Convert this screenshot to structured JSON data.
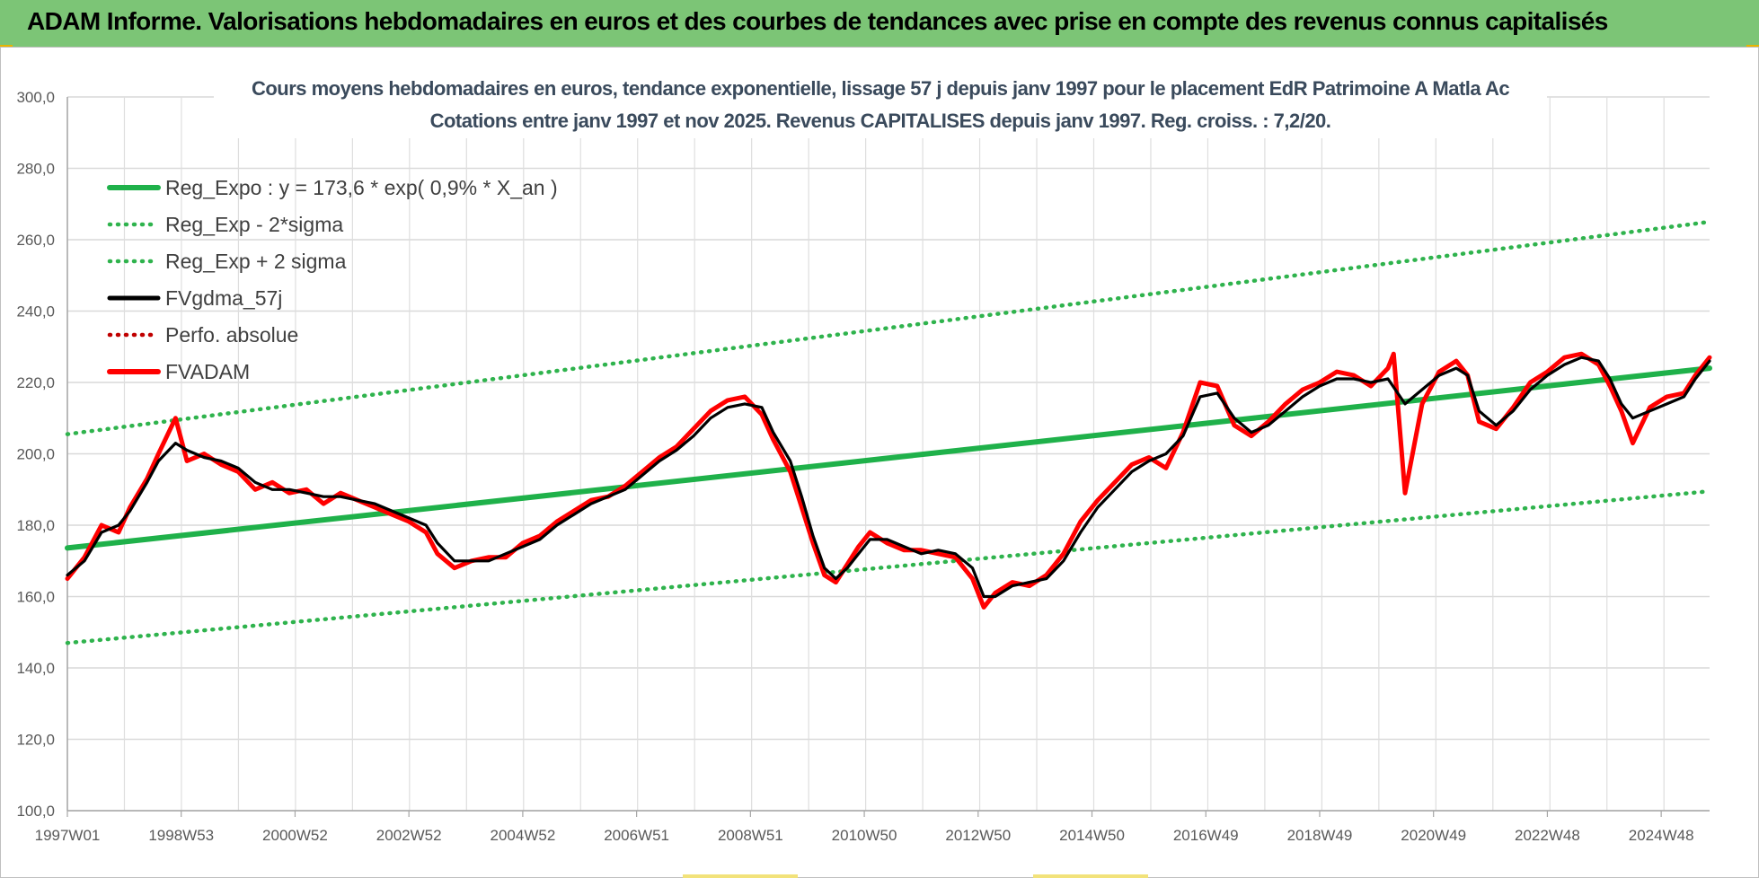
{
  "banner": {
    "title": "ADAM Informe. Valorisations hebdomadaires en euros et des courbes de tendances avec prise en compte des revenus connus capitalisés"
  },
  "colors": {
    "banner_bg": "#7cc576",
    "reg_green": "#1fb14a",
    "sigma_green": "#2fb34d",
    "fvgdma_black": "#000000",
    "perfo_red": "#c00000",
    "fvadam_red": "#ff0000",
    "grid": "#d9d9d9",
    "axis_text": "#595959",
    "title_text": "#3a4a5c"
  },
  "chart_data": {
    "type": "line",
    "title": "Cours moyens hebdomadaires en euros, tendance exponentielle, lissage 57 j depuis janv 1997 pour le placement EdR Patrimoine A Matla Ac",
    "subtitle": "Cotations entre janv 1997 et nov 2025. Revenus CAPITALISES depuis janv 1997. Reg. croiss. : 7,2/20.",
    "xlabel": "",
    "ylabel": "",
    "x_range": [
      1997.0,
      2025.85
    ],
    "ylim": [
      100,
      300
    ],
    "y_ticks": [
      "100,0",
      "120,0",
      "140,0",
      "160,0",
      "180,0",
      "200,0",
      "220,0",
      "240,0",
      "260,0",
      "280,0",
      "300,0"
    ],
    "x_ticks": [
      {
        "label": "1997W01",
        "x": 1997.0
      },
      {
        "label": "1998W53",
        "x": 1999.0
      },
      {
        "label": "2000W52",
        "x": 2001.0
      },
      {
        "label": "2002W52",
        "x": 2003.0
      },
      {
        "label": "2004W52",
        "x": 2005.0
      },
      {
        "label": "2006W51",
        "x": 2007.0
      },
      {
        "label": "2008W51",
        "x": 2009.0
      },
      {
        "label": "2010W50",
        "x": 2011.0
      },
      {
        "label": "2012W50",
        "x": 2013.0
      },
      {
        "label": "2014W50",
        "x": 2015.0
      },
      {
        "label": "2016W49",
        "x": 2017.0
      },
      {
        "label": "2018W49",
        "x": 2019.0
      },
      {
        "label": "2020W49",
        "x": 2021.0
      },
      {
        "label": "2022W48",
        "x": 2023.0
      },
      {
        "label": "2024W48",
        "x": 2025.0
      }
    ],
    "grid": true,
    "legend_position": "top-left",
    "series": [
      {
        "name": "Reg_Expo : y = 173,6 * exp( 0,9% *  X_an )",
        "style": "solid-thick",
        "color": "#1fb14a",
        "points": [
          [
            1997.0,
            173.6
          ],
          [
            2025.85,
            224.0
          ]
        ]
      },
      {
        "name": "Reg_Exp - 2*sigma",
        "style": "dotted",
        "color": "#2fb34d",
        "points": [
          [
            1997.0,
            147.0
          ],
          [
            2025.85,
            189.5
          ]
        ]
      },
      {
        "name": "Reg_Exp + 2 sigma",
        "style": "dotted",
        "color": "#2fb34d",
        "points": [
          [
            1997.0,
            205.5
          ],
          [
            2025.85,
            265.0
          ]
        ]
      },
      {
        "name": "FVgdma_57j",
        "style": "solid",
        "color": "#000000",
        "points": [
          [
            1997.0,
            166
          ],
          [
            1997.3,
            170
          ],
          [
            1997.6,
            178
          ],
          [
            1997.9,
            180
          ],
          [
            1998.1,
            184
          ],
          [
            1998.4,
            192
          ],
          [
            1998.6,
            198
          ],
          [
            1998.9,
            203
          ],
          [
            1999.1,
            201
          ],
          [
            1999.4,
            199
          ],
          [
            1999.7,
            198
          ],
          [
            2000.0,
            196
          ],
          [
            2000.3,
            192
          ],
          [
            2000.6,
            190
          ],
          [
            2000.9,
            190
          ],
          [
            2001.2,
            189
          ],
          [
            2001.5,
            188
          ],
          [
            2001.8,
            188
          ],
          [
            2002.1,
            187
          ],
          [
            2002.4,
            186
          ],
          [
            2002.7,
            184
          ],
          [
            2003.0,
            182
          ],
          [
            2003.3,
            180
          ],
          [
            2003.5,
            175
          ],
          [
            2003.8,
            170
          ],
          [
            2004.1,
            170
          ],
          [
            2004.4,
            170
          ],
          [
            2004.7,
            172
          ],
          [
            2005.0,
            174
          ],
          [
            2005.3,
            176
          ],
          [
            2005.6,
            180
          ],
          [
            2005.9,
            183
          ],
          [
            2006.2,
            186
          ],
          [
            2006.5,
            188
          ],
          [
            2006.8,
            190
          ],
          [
            2007.1,
            194
          ],
          [
            2007.4,
            198
          ],
          [
            2007.7,
            201
          ],
          [
            2008.0,
            205
          ],
          [
            2008.3,
            210
          ],
          [
            2008.6,
            213
          ],
          [
            2008.9,
            214
          ],
          [
            2009.2,
            213
          ],
          [
            2009.4,
            206
          ],
          [
            2009.7,
            198
          ],
          [
            2009.9,
            188
          ],
          [
            2010.1,
            177
          ],
          [
            2010.3,
            168
          ],
          [
            2010.5,
            165
          ],
          [
            2010.7,
            168
          ],
          [
            2010.9,
            172
          ],
          [
            2011.1,
            176
          ],
          [
            2011.4,
            176
          ],
          [
            2011.7,
            174
          ],
          [
            2012.0,
            172
          ],
          [
            2012.3,
            173
          ],
          [
            2012.6,
            172
          ],
          [
            2012.9,
            168
          ],
          [
            2013.1,
            160
          ],
          [
            2013.3,
            160
          ],
          [
            2013.6,
            163
          ],
          [
            2013.9,
            164
          ],
          [
            2014.2,
            165
          ],
          [
            2014.5,
            170
          ],
          [
            2014.8,
            178
          ],
          [
            2015.1,
            185
          ],
          [
            2015.4,
            190
          ],
          [
            2015.7,
            195
          ],
          [
            2016.0,
            198
          ],
          [
            2016.3,
            200
          ],
          [
            2016.6,
            205
          ],
          [
            2016.9,
            216
          ],
          [
            2017.2,
            217
          ],
          [
            2017.5,
            210
          ],
          [
            2017.8,
            206
          ],
          [
            2018.1,
            208
          ],
          [
            2018.4,
            212
          ],
          [
            2018.7,
            216
          ],
          [
            2019.0,
            219
          ],
          [
            2019.3,
            221
          ],
          [
            2019.6,
            221
          ],
          [
            2019.9,
            220
          ],
          [
            2020.2,
            221
          ],
          [
            2020.5,
            214
          ],
          [
            2020.8,
            218
          ],
          [
            2021.1,
            222
          ],
          [
            2021.4,
            224
          ],
          [
            2021.6,
            222
          ],
          [
            2021.8,
            212
          ],
          [
            2022.1,
            208
          ],
          [
            2022.4,
            212
          ],
          [
            2022.7,
            218
          ],
          [
            2023.0,
            222
          ],
          [
            2023.3,
            225
          ],
          [
            2023.6,
            227
          ],
          [
            2023.9,
            226
          ],
          [
            2024.1,
            221
          ],
          [
            2024.3,
            214
          ],
          [
            2024.5,
            210
          ],
          [
            2024.8,
            212
          ],
          [
            2025.1,
            214
          ],
          [
            2025.4,
            216
          ],
          [
            2025.6,
            221
          ],
          [
            2025.85,
            226
          ]
        ]
      },
      {
        "name": "Perfo. absolue",
        "style": "dotted",
        "color": "#c00000",
        "points": []
      },
      {
        "name": "FVADAM",
        "style": "solid-thick",
        "color": "#ff0000",
        "points": [
          [
            1997.0,
            165
          ],
          [
            1997.3,
            171
          ],
          [
            1997.6,
            180
          ],
          [
            1997.9,
            178
          ],
          [
            1998.1,
            185
          ],
          [
            1998.4,
            193
          ],
          [
            1998.6,
            200
          ],
          [
            1998.9,
            210
          ],
          [
            1999.1,
            198
          ],
          [
            1999.4,
            200
          ],
          [
            1999.7,
            197
          ],
          [
            2000.0,
            195
          ],
          [
            2000.3,
            190
          ],
          [
            2000.6,
            192
          ],
          [
            2000.9,
            189
          ],
          [
            2001.2,
            190
          ],
          [
            2001.5,
            186
          ],
          [
            2001.8,
            189
          ],
          [
            2002.1,
            187
          ],
          [
            2002.4,
            185
          ],
          [
            2002.7,
            183
          ],
          [
            2003.0,
            181
          ],
          [
            2003.3,
            178
          ],
          [
            2003.5,
            172
          ],
          [
            2003.8,
            168
          ],
          [
            2004.1,
            170
          ],
          [
            2004.4,
            171
          ],
          [
            2004.7,
            171
          ],
          [
            2005.0,
            175
          ],
          [
            2005.3,
            177
          ],
          [
            2005.6,
            181
          ],
          [
            2005.9,
            184
          ],
          [
            2006.2,
            187
          ],
          [
            2006.5,
            188
          ],
          [
            2006.8,
            191
          ],
          [
            2007.1,
            195
          ],
          [
            2007.4,
            199
          ],
          [
            2007.7,
            202
          ],
          [
            2008.0,
            207
          ],
          [
            2008.3,
            212
          ],
          [
            2008.6,
            215
          ],
          [
            2008.9,
            216
          ],
          [
            2009.2,
            211
          ],
          [
            2009.4,
            204
          ],
          [
            2009.7,
            195
          ],
          [
            2009.9,
            185
          ],
          [
            2010.1,
            175
          ],
          [
            2010.3,
            166
          ],
          [
            2010.5,
            164
          ],
          [
            2010.7,
            169
          ],
          [
            2010.9,
            174
          ],
          [
            2011.1,
            178
          ],
          [
            2011.4,
            175
          ],
          [
            2011.7,
            173
          ],
          [
            2012.0,
            173
          ],
          [
            2012.3,
            172
          ],
          [
            2012.6,
            171
          ],
          [
            2012.9,
            165
          ],
          [
            2013.1,
            157
          ],
          [
            2013.3,
            161
          ],
          [
            2013.6,
            164
          ],
          [
            2013.9,
            163
          ],
          [
            2014.2,
            166
          ],
          [
            2014.5,
            172
          ],
          [
            2014.8,
            181
          ],
          [
            2015.1,
            187
          ],
          [
            2015.4,
            192
          ],
          [
            2015.7,
            197
          ],
          [
            2016.0,
            199
          ],
          [
            2016.3,
            196
          ],
          [
            2016.6,
            206
          ],
          [
            2016.9,
            220
          ],
          [
            2017.2,
            219
          ],
          [
            2017.5,
            208
          ],
          [
            2017.8,
            205
          ],
          [
            2018.1,
            209
          ],
          [
            2018.4,
            214
          ],
          [
            2018.7,
            218
          ],
          [
            2019.0,
            220
          ],
          [
            2019.3,
            223
          ],
          [
            2019.6,
            222
          ],
          [
            2019.9,
            219
          ],
          [
            2020.2,
            224
          ],
          [
            2020.3,
            228
          ],
          [
            2020.5,
            189
          ],
          [
            2020.8,
            214
          ],
          [
            2021.1,
            223
          ],
          [
            2021.4,
            226
          ],
          [
            2021.6,
            222
          ],
          [
            2021.8,
            209
          ],
          [
            2022.1,
            207
          ],
          [
            2022.4,
            213
          ],
          [
            2022.7,
            220
          ],
          [
            2023.0,
            223
          ],
          [
            2023.3,
            227
          ],
          [
            2023.6,
            228
          ],
          [
            2023.9,
            225
          ],
          [
            2024.1,
            219
          ],
          [
            2024.3,
            212
          ],
          [
            2024.5,
            203
          ],
          [
            2024.8,
            213
          ],
          [
            2025.1,
            216
          ],
          [
            2025.4,
            217
          ],
          [
            2025.6,
            222
          ],
          [
            2025.85,
            227
          ]
        ]
      }
    ]
  }
}
